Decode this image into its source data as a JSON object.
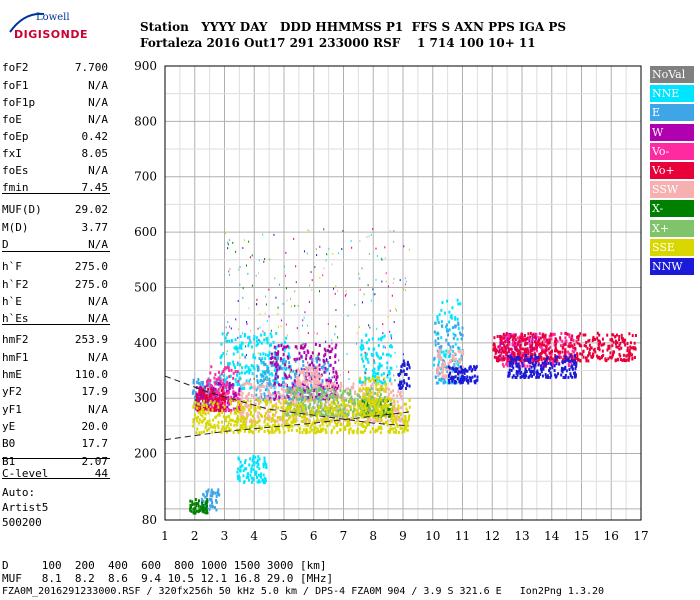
{
  "logo": {
    "line1": "Lowell",
    "line2": "DIGISONDE"
  },
  "header": {
    "row1": "Station   YYYY DAY   DDD HHMMSS P1  FFS S AXN PPS IGA PS",
    "row2": "Fortaleza 2016 Out17 291 233000 RSF    1 714 100 10+ 11"
  },
  "params": [
    {
      "label": "foF2",
      "value": "7.700"
    },
    {
      "label": "foF1",
      "value": "N/A"
    },
    {
      "label": "foF1p",
      "value": "N/A"
    },
    {
      "label": "foE",
      "value": "N/A"
    },
    {
      "label": "foEp",
      "value": "0.42"
    },
    {
      "label": "fxI",
      "value": "8.05"
    },
    {
      "label": "foEs",
      "value": "N/A"
    },
    {
      "label": "fmin",
      "value": "7.45"
    },
    {
      "label": "MUF(D)",
      "value": "29.02"
    },
    {
      "label": "M(D)",
      "value": "3.77"
    },
    {
      "label": "D",
      "value": "N/A"
    },
    {
      "label": "h`F",
      "value": "275.0"
    },
    {
      "label": "h`F2",
      "value": "275.0"
    },
    {
      "label": "h`E",
      "value": "N/A"
    },
    {
      "label": "h`Es",
      "value": "N/A"
    },
    {
      "label": "hmF2",
      "value": "253.9"
    },
    {
      "label": "hmF1",
      "value": "N/A"
    },
    {
      "label": "hmE",
      "value": "110.0"
    },
    {
      "label": "yF2",
      "value": "17.9"
    },
    {
      "label": "yF1",
      "value": "N/A"
    },
    {
      "label": "yE",
      "value": "20.0"
    },
    {
      "label": "B0",
      "value": "17.7"
    },
    {
      "label": "B1",
      "value": "2.07"
    },
    {
      "label": "C-level",
      "value": "44"
    }
  ],
  "auto": {
    "line1": "Auto:",
    "line2": "Artist5",
    "line3": "500200"
  },
  "legend": [
    {
      "label": "NoVal",
      "color": "#808080"
    },
    {
      "label": "NNE",
      "color": "#00e5ff"
    },
    {
      "label": "E",
      "color": "#3ea6e8"
    },
    {
      "label": "W",
      "color": "#b000b0"
    },
    {
      "label": "Vo-",
      "color": "#ff2aa0"
    },
    {
      "label": "Vo+",
      "color": "#e8003a"
    },
    {
      "label": "SSW",
      "color": "#f6b0b0"
    },
    {
      "label": "X-",
      "color": "#008000"
    },
    {
      "label": "X+",
      "color": "#7fc46a"
    },
    {
      "label": "SSE",
      "color": "#d8d800"
    },
    {
      "label": "NNW",
      "color": "#1a1ad8"
    }
  ],
  "bottom": {
    "row1": "D     100  200  400  600  800 1000 1500 3000 [km]",
    "row2": "MUF   8.1  8.2  8.6  9.4 10.5 12.1 16.8 29.0 [MHz]",
    "row3": "FZA0M_2016291233000.RSF / 320fx256h 50 kHz 5.0 km / DPS-4 FZA0M 904 / 3.9 S 321.6 E   Ion2Png 1.3.20"
  },
  "chart_data": {
    "type": "scatter",
    "title": "",
    "xlabel": "",
    "ylabel": "",
    "xlim": [
      1,
      17
    ],
    "ylim": [
      80,
      900
    ],
    "xticks": [
      1,
      2,
      3,
      4,
      5,
      6,
      7,
      8,
      9,
      10,
      11,
      12,
      13,
      14,
      15,
      16,
      17
    ],
    "yticks": [
      80,
      200,
      300,
      400,
      500,
      600,
      700,
      800,
      900
    ],
    "grid": true,
    "legend_position": "right",
    "series": [
      {
        "name": "NNE",
        "clusters": [
          [
            [
              2.8,
              5.2
            ],
            [
              320,
              420
            ]
          ],
          [
            [
              10.0,
              10.9
            ],
            [
              330,
              480
            ]
          ],
          [
            [
              3.4,
              4.4
            ],
            [
              150,
              200
            ]
          ],
          [
            [
              7.5,
              8.6
            ],
            [
              330,
              420
            ]
          ]
        ]
      },
      {
        "name": "E",
        "clusters": [
          [
            [
              1.9,
              2.8
            ],
            [
              290,
              340
            ]
          ],
          [
            [
              4.0,
              6.5
            ],
            [
              300,
              380
            ]
          ],
          [
            [
              10.0,
              11.0
            ],
            [
              330,
              440
            ]
          ],
          [
            [
              2.2,
              2.8
            ],
            [
              100,
              140
            ]
          ]
        ]
      },
      {
        "name": "W",
        "clusters": [
          [
            [
              2.0,
              3.5
            ],
            [
              280,
              330
            ]
          ],
          [
            [
              4.5,
              6.8
            ],
            [
              300,
              400
            ]
          ],
          [
            [
              12.2,
              13.5
            ],
            [
              370,
              420
            ]
          ]
        ]
      },
      {
        "name": "Vo-",
        "clusters": [
          [
            [
              2.3,
              3.5
            ],
            [
              280,
              360
            ]
          ],
          [
            [
              12.2,
              14.8
            ],
            [
              360,
              420
            ]
          ]
        ]
      },
      {
        "name": "Vo+",
        "clusters": [
          [
            [
              2.0,
              3.0
            ],
            [
              280,
              320
            ]
          ],
          [
            [
              12.0,
              16.8
            ],
            [
              370,
              420
            ]
          ]
        ]
      },
      {
        "name": "SSW",
        "clusters": [
          [
            [
              5.4,
              6.2
            ],
            [
              330,
              360
            ]
          ],
          [
            [
              10.1,
              11.0
            ],
            [
              340,
              390
            ]
          ],
          [
            [
              3.5,
              9.0
            ],
            [
              260,
              330
            ]
          ]
        ]
      },
      {
        "name": "X-",
        "clusters": [
          [
            [
              1.8,
              2.4
            ],
            [
              95,
              120
            ]
          ],
          [
            [
              7.6,
              8.6
            ],
            [
              270,
              300
            ]
          ]
        ]
      },
      {
        "name": "X+",
        "clusters": [
          [
            [
              5.0,
              8.4
            ],
            [
              270,
              320
            ]
          ]
        ]
      },
      {
        "name": "SSE",
        "clusters": [
          [
            [
              1.9,
              9.2
            ],
            [
              240,
              300
            ]
          ],
          [
            [
              7.5,
              8.5
            ],
            [
              270,
              340
            ]
          ]
        ]
      },
      {
        "name": "NNW",
        "clusters": [
          [
            [
              12.5,
              14.8
            ],
            [
              340,
              380
            ]
          ],
          [
            [
              10.5,
              11.5
            ],
            [
              330,
              360
            ]
          ],
          [
            [
              8.8,
              9.2
            ],
            [
              320,
              370
            ]
          ]
        ]
      }
    ],
    "reference_curves": [
      {
        "style": "dashed",
        "points": [
          [
            1.0,
            340
          ],
          [
            2.5,
            310
          ],
          [
            4.5,
            280
          ],
          [
            8.0,
            255
          ],
          [
            9.2,
            250
          ]
        ]
      },
      {
        "style": "dashed",
        "points": [
          [
            1.0,
            225
          ],
          [
            3.0,
            240
          ],
          [
            6.0,
            255
          ],
          [
            9.2,
            275
          ]
        ]
      }
    ]
  }
}
